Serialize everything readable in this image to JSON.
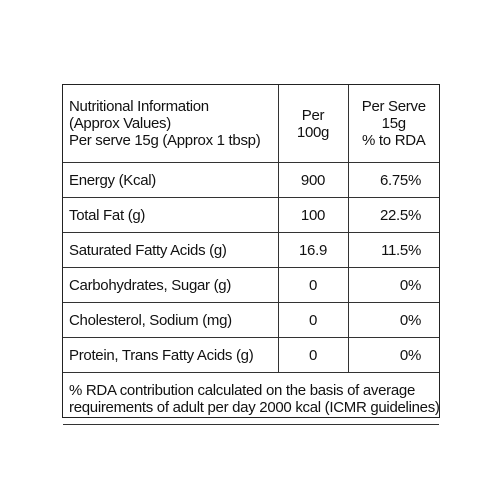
{
  "table": {
    "header": {
      "name_lines": [
        "Nutritional Information",
        "(Approx Values)",
        "Per serve 15g (Approx 1 tbsp)"
      ],
      "per100_lines": [
        "Per",
        "100g"
      ],
      "serve_lines": [
        "Per Serve",
        "15g",
        "% to RDA"
      ]
    },
    "rows": [
      {
        "name": "Energy (Kcal)",
        "per100": "900",
        "rda": "6.75%"
      },
      {
        "name": "Total Fat (g)",
        "per100": "100",
        "rda": "22.5%"
      },
      {
        "name": "Saturated Fatty Acids (g)",
        "per100": "16.9",
        "rda": "11.5%"
      },
      {
        "name": "Carbohydrates, Sugar (g)",
        "per100": "0",
        "rda": "0%"
      },
      {
        "name": "Cholesterol, Sodium (mg)",
        "per100": "0",
        "rda": "0%"
      },
      {
        "name": "Protein, Trans Fatty Acids (g)",
        "per100": "0",
        "rda": "0%"
      }
    ],
    "footnote_lines": [
      "% RDA contribution calculated on the basis of average",
      "requirements of adult per day 2000 kcal (ICMR guidelines)"
    ]
  }
}
